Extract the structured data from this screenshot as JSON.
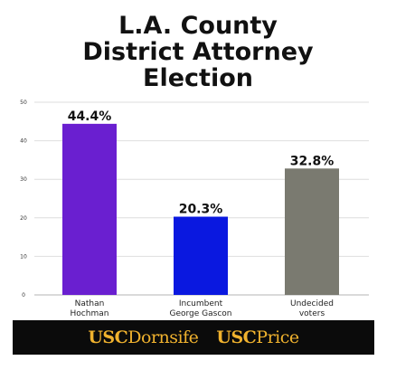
{
  "chart_data": {
    "type": "bar",
    "title_lines": [
      "L.A. County",
      "District Attorney",
      "Election"
    ],
    "categories": [
      [
        "Nathan",
        "Hochman"
      ],
      [
        "Incumbent",
        "George Gascon"
      ],
      [
        "Undecided",
        "voters"
      ]
    ],
    "values": [
      44.4,
      20.3,
      32.8
    ],
    "value_labels": [
      "44.4%",
      "20.3%",
      "32.8%"
    ],
    "colors": [
      "#6a1fd0",
      "#0a18e0",
      "#7a7a70"
    ],
    "ylim": [
      0,
      50
    ],
    "yticks": [
      0,
      10,
      20,
      30,
      40,
      50
    ],
    "grid": true
  },
  "footer": {
    "logos": [
      {
        "usc": "USC",
        "rest": "Dornsife"
      },
      {
        "usc": "USC",
        "rest": "Price"
      }
    ]
  }
}
